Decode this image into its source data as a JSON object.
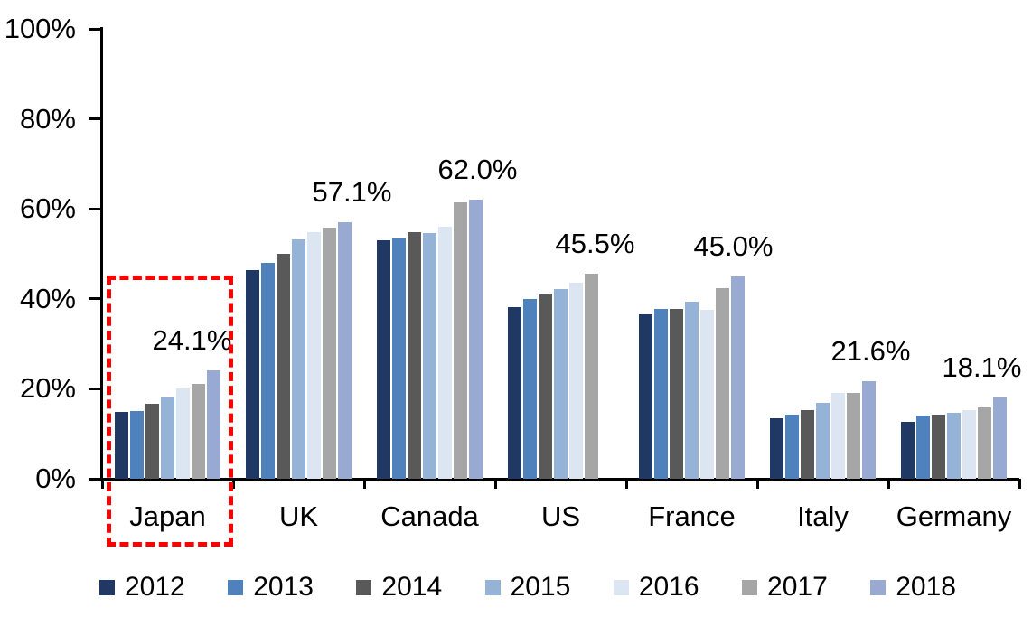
{
  "chart_data": {
    "type": "bar",
    "title": "",
    "categories": [
      "Japan",
      "UK",
      "Canada",
      "US",
      "France",
      "Italy",
      "Germany"
    ],
    "series": [
      {
        "name": "2012",
        "color": "#1F3864",
        "values": [
          14.8,
          46.4,
          53.0,
          38.2,
          36.5,
          13.4,
          12.6
        ]
      },
      {
        "name": "2013",
        "color": "#4F81BD",
        "values": [
          15.0,
          47.9,
          53.4,
          40.0,
          37.7,
          14.3,
          14.1
        ]
      },
      {
        "name": "2014",
        "color": "#595959",
        "values": [
          16.6,
          50.0,
          54.8,
          41.1,
          37.7,
          15.3,
          14.3
        ]
      },
      {
        "name": "2015",
        "color": "#95B3D7",
        "values": [
          18.1,
          53.2,
          54.6,
          42.2,
          39.4,
          16.9,
          14.7
        ]
      },
      {
        "name": "2016",
        "color": "#DCE6F2",
        "values": [
          20.0,
          54.9,
          56.0,
          43.6,
          37.5,
          19.0,
          15.3
        ]
      },
      {
        "name": "2017",
        "color": "#A6A6A6",
        "values": [
          21.1,
          55.9,
          61.5,
          45.5,
          42.3,
          19.1,
          15.9
        ]
      },
      {
        "name": "2018",
        "color": "#98AAD2",
        "values": [
          24.1,
          57.1,
          62.0,
          null,
          45.0,
          21.6,
          18.1
        ]
      }
    ],
    "data_labels": [
      "24.1%",
      "57.1%",
      "62.0%",
      "45.5%",
      "45.0%",
      "21.6%",
      "18.1%"
    ],
    "ylim": [
      0,
      100
    ],
    "yticks": [
      "0%",
      "20%",
      "40%",
      "60%",
      "80%",
      "100%"
    ],
    "ytick_values": [
      0,
      20,
      40,
      60,
      80,
      100
    ],
    "grid": false,
    "legend_position": "bottom",
    "axis_color": "#000000",
    "highlight": {
      "category": "Japan",
      "style": "red-dashed-box",
      "color": "#FF0000"
    }
  }
}
